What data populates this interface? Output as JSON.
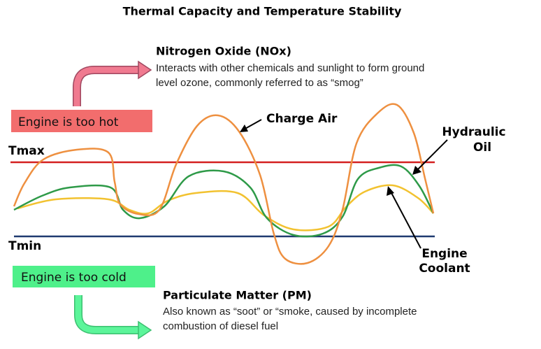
{
  "title": "Thermal Capacity and Temperature Stability",
  "nox": {
    "title": "Nitrogen Oxide (NOx)",
    "lines": [
      "Interacts with other chemicals and sunlight to form ground",
      "level ozone, commonly referred to as “smog”"
    ]
  },
  "hot_box": "Engine is too hot",
  "cold_box": "Engine is too cold",
  "pm": {
    "title": "Particulate Matter (PM)",
    "lines": [
      "Also known as “soot” or “smoke, caused by incomplete",
      "combustion of diesel fuel"
    ]
  },
  "levels": {
    "tmax": "Tmax",
    "tmin": "Tmin"
  },
  "curves": {
    "charge_air": "Charge Air",
    "hydraulic_oil": [
      "Hydraulic",
      "Oil"
    ],
    "engine_coolant": [
      "Engine",
      "Coolant"
    ]
  }
}
